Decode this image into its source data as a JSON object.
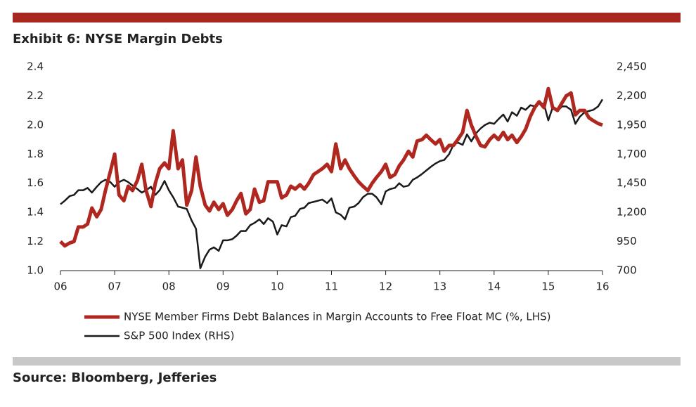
{
  "chart_data": {
    "type": "line",
    "title": "Exhibit 6: NYSE Margin Debts",
    "source": "Source: Bloomberg, Jefferies",
    "x": [
      6,
      6.08,
      6.17,
      6.25,
      6.33,
      6.42,
      6.5,
      6.58,
      6.67,
      6.75,
      6.83,
      6.92,
      7,
      7.08,
      7.17,
      7.25,
      7.33,
      7.42,
      7.5,
      7.58,
      7.67,
      7.75,
      7.83,
      7.92,
      8,
      8.08,
      8.17,
      8.25,
      8.33,
      8.42,
      8.5,
      8.58,
      8.67,
      8.75,
      8.83,
      8.92,
      9,
      9.08,
      9.17,
      9.25,
      9.33,
      9.42,
      9.5,
      9.58,
      9.67,
      9.75,
      9.83,
      9.92,
      10,
      10.08,
      10.17,
      10.25,
      10.33,
      10.42,
      10.5,
      10.58,
      10.67,
      10.75,
      10.83,
      10.92,
      11,
      11.08,
      11.17,
      11.25,
      11.33,
      11.42,
      11.5,
      11.58,
      11.67,
      11.75,
      11.83,
      11.92,
      12,
      12.08,
      12.17,
      12.25,
      12.33,
      12.42,
      12.5,
      12.58,
      12.67,
      12.75,
      12.83,
      12.92,
      13,
      13.08,
      13.17,
      13.25,
      13.33,
      13.42,
      13.5,
      13.58,
      13.67,
      13.75,
      13.83,
      13.92,
      14,
      14.08,
      14.17,
      14.25,
      14.33,
      14.42,
      14.5,
      14.58,
      14.67,
      14.75,
      14.83,
      14.92,
      15,
      15.08,
      15.17,
      15.25,
      15.33,
      15.42,
      15.5,
      15.58,
      15.67,
      15.75,
      15.83,
      15.92,
      16
    ],
    "series": [
      {
        "name": "NYSE Member Firms Debt Balances in Margin Accounts to Free Float MC (%, LHS)",
        "color": "#b0271f",
        "axis": "y",
        "values": [
          1.2,
          1.17,
          1.19,
          1.2,
          1.3,
          1.3,
          1.32,
          1.43,
          1.37,
          1.42,
          1.55,
          1.68,
          1.8,
          1.52,
          1.48,
          1.58,
          1.55,
          1.62,
          1.73,
          1.55,
          1.44,
          1.6,
          1.7,
          1.74,
          1.7,
          1.96,
          1.7,
          1.76,
          1.45,
          1.55,
          1.78,
          1.58,
          1.45,
          1.41,
          1.47,
          1.42,
          1.46,
          1.38,
          1.42,
          1.48,
          1.53,
          1.39,
          1.42,
          1.56,
          1.47,
          1.48,
          1.61,
          1.61,
          1.61,
          1.5,
          1.52,
          1.58,
          1.56,
          1.59,
          1.56,
          1.6,
          1.66,
          1.68,
          1.7,
          1.73,
          1.68,
          1.87,
          1.7,
          1.76,
          1.7,
          1.65,
          1.61,
          1.58,
          1.55,
          1.6,
          1.64,
          1.68,
          1.73,
          1.64,
          1.66,
          1.72,
          1.76,
          1.82,
          1.78,
          1.89,
          1.9,
          1.93,
          1.9,
          1.87,
          1.9,
          1.82,
          1.86,
          1.86,
          1.9,
          1.95,
          2.1,
          2.0,
          1.92,
          1.86,
          1.85,
          1.9,
          1.93,
          1.9,
          1.95,
          1.9,
          1.93,
          1.88,
          1.92,
          1.97,
          2.06,
          2.12,
          2.16,
          2.12,
          2.25,
          2.12,
          2.1,
          2.15,
          2.2,
          2.22,
          2.07,
          2.1,
          2.1,
          2.05,
          2.03,
          2.01,
          2.0
        ]
      },
      {
        "name": "S&P 500 Index (RHS)",
        "color": "#1a1a1a",
        "axis": "y2",
        "values": [
          1270,
          1300,
          1340,
          1350,
          1390,
          1390,
          1410,
          1370,
          1420,
          1460,
          1480,
          1460,
          1420,
          1460,
          1480,
          1460,
          1430,
          1400,
          1370,
          1390,
          1420,
          1350,
          1390,
          1470,
          1390,
          1330,
          1250,
          1240,
          1230,
          1130,
          1060,
          720,
          820,
          880,
          900,
          870,
          960,
          960,
          970,
          1000,
          1040,
          1040,
          1090,
          1110,
          1140,
          1100,
          1150,
          1120,
          1010,
          1090,
          1080,
          1160,
          1170,
          1230,
          1240,
          1280,
          1290,
          1300,
          1310,
          1280,
          1320,
          1200,
          1180,
          1140,
          1240,
          1250,
          1280,
          1330,
          1360,
          1360,
          1330,
          1270,
          1380,
          1400,
          1410,
          1450,
          1420,
          1430,
          1480,
          1500,
          1530,
          1560,
          1590,
          1620,
          1640,
          1650,
          1700,
          1780,
          1800,
          1780,
          1870,
          1810,
          1880,
          1920,
          1950,
          1970,
          1960,
          2000,
          2040,
          1980,
          2060,
          2030,
          2100,
          2080,
          2120,
          2110,
          2140,
          2130,
          1990,
          2100,
          2070,
          2110,
          2110,
          2080,
          1960,
          2020,
          2060,
          2070,
          2080,
          2110,
          2170
        ]
      }
    ],
    "xlim": [
      6,
      16
    ],
    "xticks": [
      {
        "value": 6,
        "label": "06"
      },
      {
        "value": 7,
        "label": "07"
      },
      {
        "value": 8,
        "label": "08"
      },
      {
        "value": 9,
        "label": "09"
      },
      10,
      11,
      12,
      13,
      14,
      15,
      16
    ],
    "ylim": [
      1.0,
      2.4
    ],
    "yticks": [
      {
        "value": 1.0,
        "label": "1.0"
      },
      1.2,
      1.4,
      1.6,
      1.8,
      {
        "value": 2.0,
        "label": "2.0"
      },
      2.2,
      2.4
    ],
    "y2lim": [
      700,
      2450
    ],
    "y2ticks": [
      700,
      950,
      {
        "value": 1200,
        "label": "1,200"
      },
      {
        "value": 1450,
        "label": "1,450"
      },
      {
        "value": 1700,
        "label": "1,700"
      },
      {
        "value": 1950,
        "label": "1,950"
      },
      {
        "value": 2200,
        "label": "2,200"
      },
      {
        "value": 2450,
        "label": "2,450"
      }
    ]
  }
}
